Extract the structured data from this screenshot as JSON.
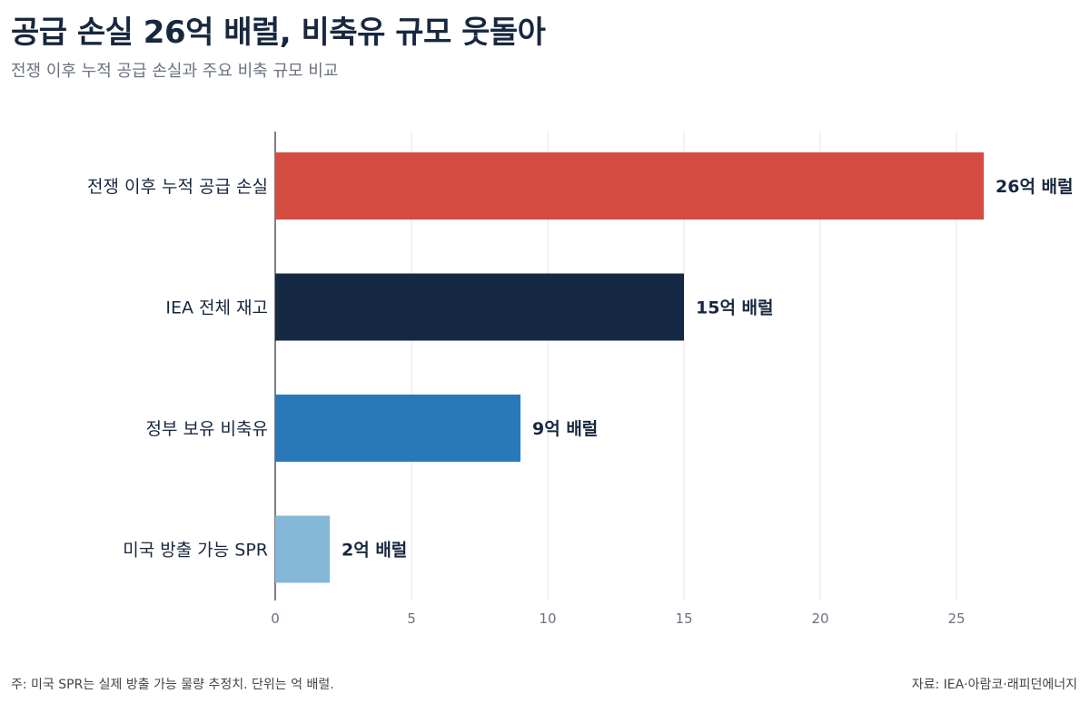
{
  "header": {
    "title": "공급 손실 26억 배럴, 비축유 규모 웃돌아",
    "subtitle": "전쟁 이후 누적 공급 손실과 주요 비축 규모 비교"
  },
  "footer": {
    "note": "주: 미국 SPR는 실제 방출 가능 물량 추정치. 단위는 억 배럴.",
    "source": "자료: IEA·아람코·래피던에너지"
  },
  "chart_data": {
    "type": "bar",
    "orientation": "horizontal",
    "categories": [
      "전쟁 이후 누적 공급 손실",
      "IEA 전체 재고",
      "정부 보유 비축유",
      "미국 방출 가능 SPR"
    ],
    "values": [
      26,
      15,
      9,
      2
    ],
    "value_labels": [
      "26억 배럴",
      "15억 배럴",
      "9억 배럴",
      "2억 배럴"
    ],
    "colors": [
      "#d44c42",
      "#162944",
      "#2979b8",
      "#85b7d9"
    ],
    "xlim": [
      0,
      26
    ],
    "x_ticks": [
      0,
      5,
      10,
      15,
      20,
      25
    ],
    "grid": true,
    "legend": "none"
  }
}
